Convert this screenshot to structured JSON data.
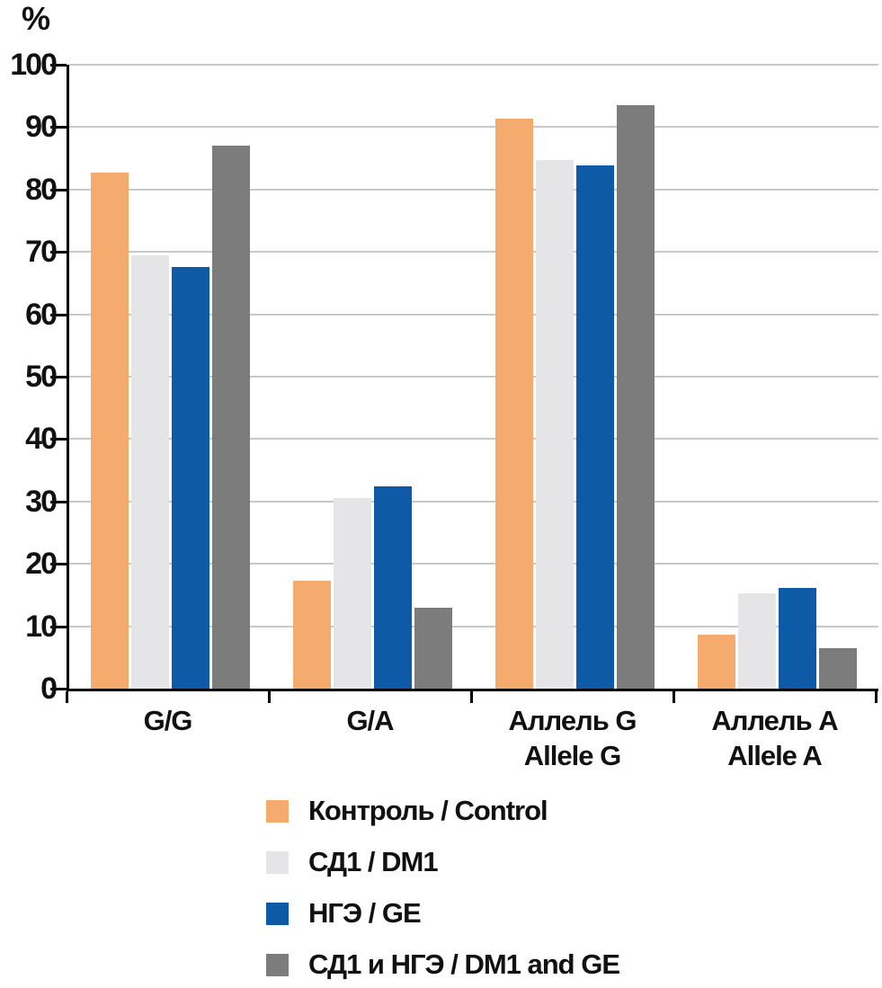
{
  "chart_data": {
    "type": "bar",
    "title": "",
    "ylabel": "%",
    "xlabel": "",
    "ylim": [
      0,
      100
    ],
    "yticks": [
      0,
      10,
      20,
      30,
      40,
      50,
      60,
      70,
      80,
      90,
      100
    ],
    "grid": true,
    "legend_position": "bottom",
    "axis_color": "#000000",
    "gridline_color": "#c9c9c9",
    "categories": [
      "G/G",
      "G/A",
      "Аллель G / Allele G",
      "Аллель A / Allele A"
    ],
    "category_labels_lines": [
      [
        "G/G"
      ],
      [
        "G/A"
      ],
      [
        "Аллель G",
        "Allele G"
      ],
      [
        "Аллель A",
        "Allele A"
      ]
    ],
    "series": [
      {
        "name": "Контроль / Control",
        "color": "#f6ab6e",
        "values": [
          82.7,
          17.3,
          91.4,
          8.6
        ]
      },
      {
        "name": "СД1 / DM1",
        "color": "#e5e5e7",
        "values": [
          69.4,
          30.6,
          84.7,
          15.3
        ]
      },
      {
        "name": "НГЭ / GE",
        "color": "#0f5aa7",
        "values": [
          67.6,
          32.4,
          83.8,
          16.2
        ]
      },
      {
        "name": "СД1 и НГЭ / DM1 and GE",
        "color": "#7c7c7c",
        "values": [
          87.0,
          13.0,
          93.5,
          6.5
        ]
      }
    ]
  }
}
